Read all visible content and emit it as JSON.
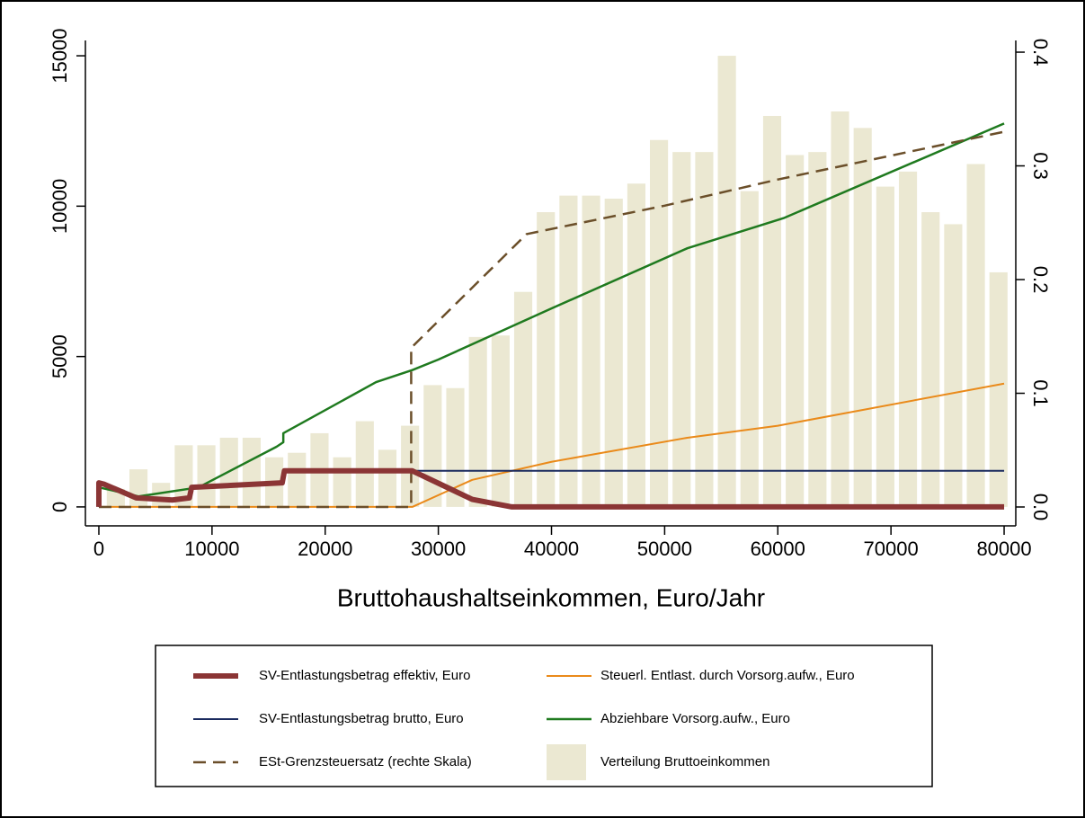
{
  "chart_data": {
    "type": "combo",
    "xlabel": "Bruttohaushaltseinkommen, Euro/Jahr",
    "xlim": [
      -1190,
      81030
    ],
    "xticks": [
      0,
      10000,
      20000,
      30000,
      40000,
      50000,
      60000,
      70000,
      80000
    ],
    "ylim": [
      -630,
      15510
    ],
    "yticks": [
      0,
      5000,
      10000,
      15000
    ],
    "y2lim": [
      -0.0166,
      0.4103
    ],
    "y2ticks": [
      {
        "value": 0,
        "label": "0.0"
      },
      0.1,
      0.2,
      0.3,
      0.4
    ],
    "series": [
      {
        "name": "SV-Entlastungsbetrag effektiv, Euro",
        "color": "#8b3535",
        "linewidth": 6,
        "x": [
          0,
          0,
          500,
          3300,
          6500,
          8000,
          8200,
          16200,
          16400,
          27700,
          33000,
          36500,
          80000
        ],
        "values": [
          0,
          800,
          750,
          300,
          230,
          300,
          650,
          800,
          1200,
          1200,
          250,
          0,
          0
        ]
      },
      {
        "name": "SV-Entlastungsbetrag brutto, Euro",
        "color": "#1a2a5e",
        "linewidth": 2,
        "x": [
          0,
          0,
          500,
          3300,
          6500,
          8000,
          8200,
          16200,
          16400,
          27700,
          80000
        ],
        "values": [
          0,
          800,
          750,
          300,
          230,
          300,
          650,
          800,
          1200,
          1200,
          1200
        ]
      },
      {
        "name": "ESt-Grenzsteuersatz (rechte Skala)",
        "color": "#6b4f2a",
        "linewidth": 2.5,
        "dashed": true,
        "axis": "y2",
        "x": [
          0,
          27600,
          27600,
          37800,
          50000,
          60000,
          80000
        ],
        "values": [
          0,
          0,
          0.14,
          0.24,
          0.265,
          0.288,
          0.33
        ]
      },
      {
        "name": "Steuerl. Entlast. durch Vorsorg.aufw., Euro",
        "color": "#ea8a1a",
        "linewidth": 2,
        "x": [
          0,
          27700,
          33000,
          40000,
          52000,
          60000,
          80000
        ],
        "values": [
          0,
          0,
          900,
          1500,
          2300,
          2700,
          4100
        ]
      },
      {
        "name": "Abziehbare Vorsorg.aufw., Euro",
        "color": "#1f7a1f",
        "linewidth": 2.5,
        "x": [
          0,
          3500,
          8800,
          15700,
          16300,
          16300,
          24500,
          27700,
          30000,
          40000,
          52000,
          60500,
          80000
        ],
        "values": [
          650,
          350,
          650,
          2000,
          2150,
          2450,
          4150,
          4550,
          4900,
          6600,
          8600,
          9600,
          12750
        ]
      }
    ],
    "histogram": {
      "name": "Verteilung Bruttoeinkommen",
      "color": "#ebe8d2",
      "bins": [
        500,
        2500,
        4500,
        6500,
        8500,
        10500,
        12500,
        14500,
        16500,
        18500,
        20500,
        22500,
        24500,
        26500,
        28500,
        30500,
        32500,
        34500,
        36500,
        38500,
        40500,
        42500,
        44500,
        46500,
        48500,
        50500,
        52500,
        54500,
        56500,
        58500,
        60500,
        62500,
        64500,
        66500,
        68500,
        70500,
        72500,
        74500,
        76500,
        78500,
        80500
      ],
      "counts": [
        600,
        1250,
        800,
        2050,
        2050,
        2300,
        2300,
        1650,
        1800,
        2450,
        1650,
        2850,
        1900,
        2700,
        4050,
        3950,
        5650,
        5700,
        7150,
        9800,
        10350,
        10350,
        10250,
        10750,
        12200,
        11800,
        11800,
        15000,
        10500,
        13000,
        11700,
        11800,
        13150,
        12600,
        10650,
        11150,
        9800,
        9400,
        11400,
        7800
      ]
    }
  }
}
